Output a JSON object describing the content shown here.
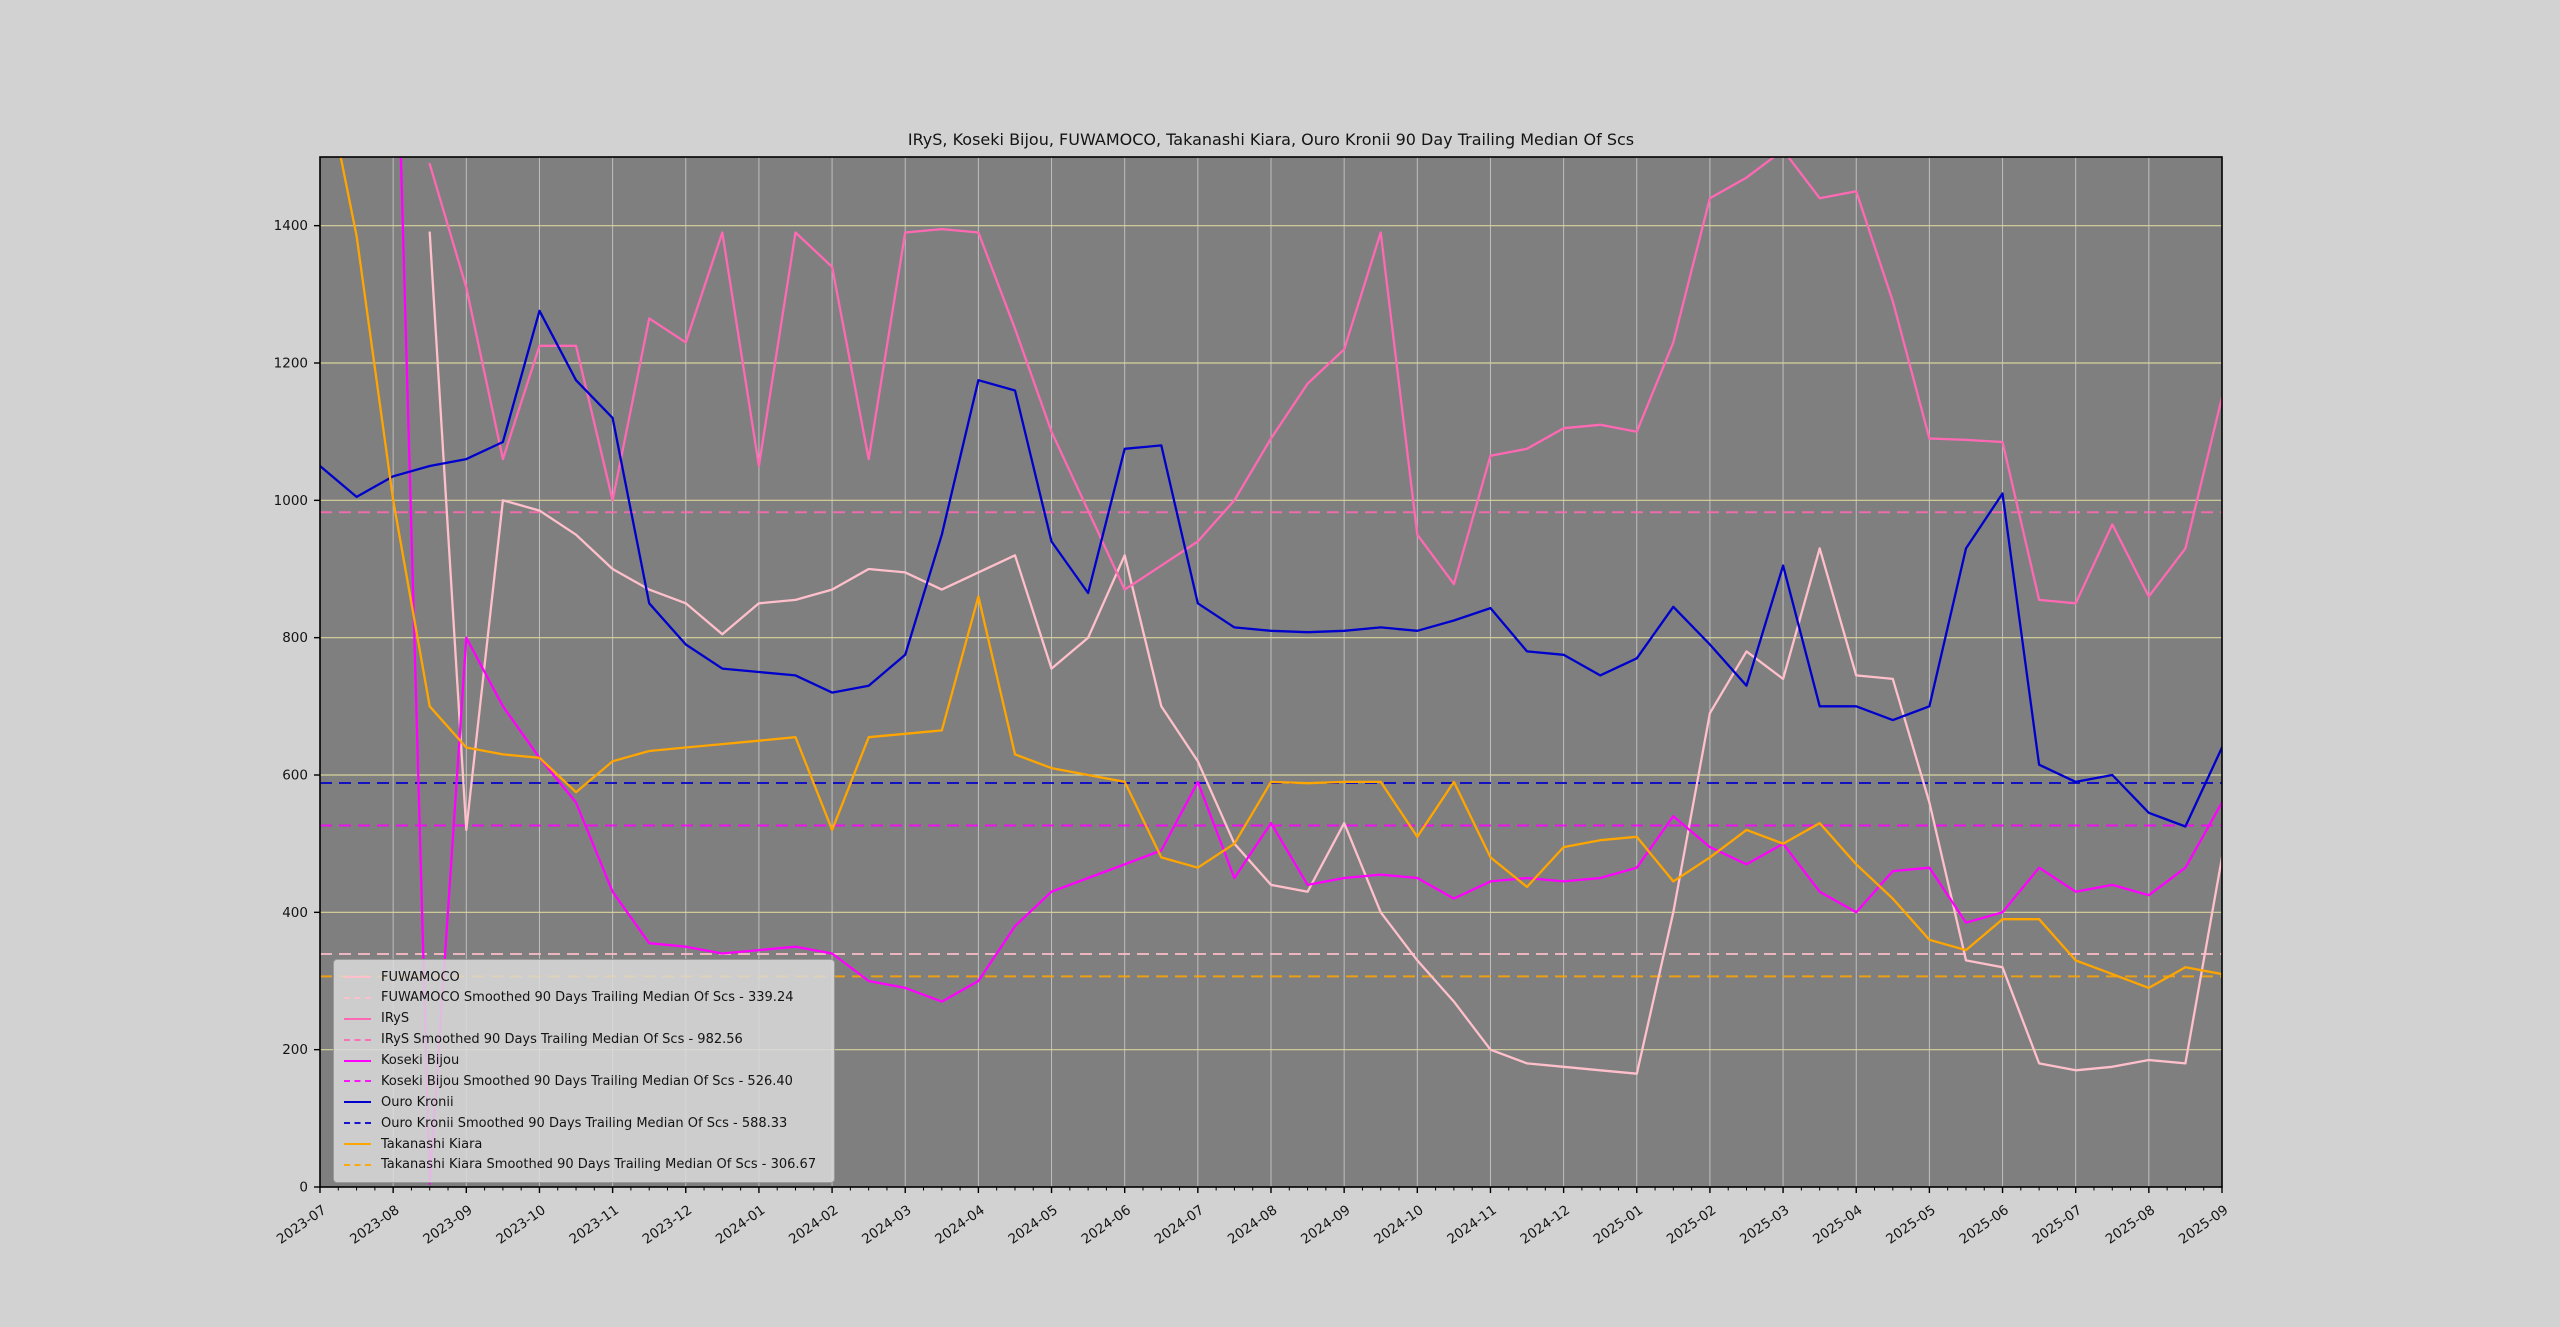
{
  "chart_data": {
    "type": "line",
    "title": "IRyS, Koseki Bijou, FUWAMOCO, Takanashi Kiara, Ouro Kronii 90 Day Trailing Median Of Scs",
    "xlabel": "",
    "ylabel": "",
    "ylim": [
      0,
      1500
    ],
    "y_ticks": [
      0,
      200,
      400,
      600,
      800,
      1000,
      1200,
      1400
    ],
    "x_tick_labels": [
      "2023-07",
      "2023-08",
      "2023-09",
      "2023-10",
      "2023-11",
      "2023-12",
      "2024-01",
      "2024-02",
      "2024-03",
      "2024-04",
      "2024-05",
      "2024-06",
      "2024-07",
      "2024-08",
      "2024-09",
      "2024-10",
      "2024-11",
      "2024-12",
      "2025-01",
      "2025-02",
      "2025-03",
      "2025-04",
      "2025-05",
      "2025-06",
      "2025-07",
      "2025-08",
      "2025-09"
    ],
    "x_step_months": 0.5,
    "grid": {
      "horizontal": true,
      "vertical": true
    },
    "legend_position": "lower left",
    "style": {
      "figure_background": "#d2d2d2",
      "plot_background": "#7f7f7f",
      "grid_h_color": "#d8d59c",
      "grid_v_color": "#bfbfbf",
      "spine_color": "#000000",
      "tick_label_color": "#141414"
    },
    "series": [
      {
        "name": "FUWAMOCO",
        "color": "#ffc0cb",
        "values": [
          null,
          null,
          null,
          1390,
          520,
          1000,
          985,
          950,
          900,
          870,
          850,
          805,
          850,
          855,
          870,
          900,
          895,
          870,
          895,
          920,
          755,
          800,
          920,
          700,
          620,
          500,
          440,
          430,
          530,
          400,
          330,
          270,
          200,
          180,
          175,
          170,
          165,
          400,
          690,
          780,
          740,
          930,
          745,
          740,
          560,
          330,
          320,
          180,
          170,
          175,
          185,
          180,
          480
        ]
      },
      {
        "name": "IRyS",
        "color": "#ff69b4",
        "values": [
          null,
          null,
          null,
          1490,
          1310,
          1060,
          1225,
          1225,
          1000,
          1265,
          1230,
          1390,
          1050,
          1390,
          1340,
          1060,
          1390,
          1395,
          1390,
          1250,
          1100,
          985,
          870,
          905,
          940,
          1000,
          1090,
          1170,
          1220,
          1390,
          950,
          878,
          1065,
          1075,
          1105,
          1110,
          1100,
          1230,
          1440,
          1470,
          1510,
          1440,
          1450,
          1290,
          1090,
          1088,
          1085,
          855,
          850,
          965,
          860,
          930,
          1150
        ]
      },
      {
        "name": "Koseki Bijou",
        "color": "#ff00ff",
        "values": [
          null,
          null,
          1900,
          5,
          800,
          700,
          625,
          560,
          430,
          355,
          350,
          340,
          345,
          350,
          340,
          300,
          290,
          270,
          300,
          380,
          430,
          450,
          470,
          490,
          590,
          450,
          530,
          440,
          450,
          455,
          450,
          420,
          445,
          450,
          445,
          450,
          465,
          540,
          495,
          470,
          500,
          430,
          400,
          460,
          465,
          385,
          400,
          465,
          430,
          440,
          425,
          465,
          560
        ]
      },
      {
        "name": "Ouro Kronii",
        "color": "#0000cd",
        "values": [
          1050,
          1005,
          1035,
          1050,
          1060,
          1085,
          1276,
          1175,
          1120,
          850,
          790,
          755,
          750,
          745,
          720,
          730,
          775,
          950,
          1175,
          1160,
          940,
          865,
          1075,
          1080,
          850,
          815,
          810,
          808,
          810,
          815,
          810,
          825,
          843,
          780,
          775,
          745,
          770,
          845,
          790,
          730,
          905,
          700,
          700,
          680,
          700,
          930,
          1010,
          615,
          590,
          600,
          545,
          525,
          640
        ]
      },
      {
        "name": "Takanashi Kiara",
        "color": "#ffa500",
        "values": [
          1650,
          1385,
          1000,
          700,
          640,
          630,
          625,
          575,
          620,
          635,
          640,
          645,
          650,
          655,
          520,
          655,
          660,
          665,
          860,
          630,
          610,
          600,
          590,
          480,
          465,
          500,
          590,
          588,
          590,
          590,
          510,
          590,
          480,
          437,
          495,
          505,
          510,
          445,
          480,
          520,
          500,
          530,
          470,
          420,
          360,
          345,
          390,
          390,
          330,
          310,
          290,
          320,
          310
        ]
      }
    ],
    "smoothed_lines": [
      {
        "name": "FUWAMOCO Smoothed 90 Days Trailing Median Of Scs",
        "value": 339.24,
        "color": "#ffc0cb"
      },
      {
        "name": "IRyS Smoothed 90 Days Trailing Median Of Scs",
        "value": 982.56,
        "color": "#ff69b4"
      },
      {
        "name": "Koseki Bijou Smoothed 90 Days Trailing Median Of Scs",
        "value": 526.4,
        "color": "#ff00ff"
      },
      {
        "name": "Ouro Kronii Smoothed 90 Days Trailing Median Of Scs",
        "value": 588.33,
        "color": "#0000cd"
      },
      {
        "name": "Takanashi Kiara Smoothed 90 Days Trailing Median Of Scs",
        "value": 306.67,
        "color": "#ffa500"
      }
    ]
  },
  "legend": {
    "items": [
      {
        "label": "FUWAMOCO",
        "color": "#ffc0cb",
        "dashed": false
      },
      {
        "label": "FUWAMOCO Smoothed 90 Days Trailing Median Of Scs - 339.24",
        "color": "#ffc0cb",
        "dashed": true
      },
      {
        "label": "IRyS",
        "color": "#ff69b4",
        "dashed": false
      },
      {
        "label": "IRyS Smoothed 90 Days Trailing Median Of Scs - 982.56",
        "color": "#ff69b4",
        "dashed": true
      },
      {
        "label": "Koseki Bijou",
        "color": "#ff00ff",
        "dashed": false
      },
      {
        "label": "Koseki Bijou Smoothed 90 Days Trailing Median Of Scs - 526.40",
        "color": "#ff00ff",
        "dashed": true
      },
      {
        "label": "Ouro Kronii",
        "color": "#0000cd",
        "dashed": false
      },
      {
        "label": "Ouro Kronii Smoothed 90 Days Trailing Median Of Scs - 588.33",
        "color": "#0000cd",
        "dashed": true
      },
      {
        "label": "Takanashi Kiara",
        "color": "#ffa500",
        "dashed": false
      },
      {
        "label": "Takanashi Kiara Smoothed 90 Days Trailing Median Of Scs - 306.67",
        "color": "#ffa500",
        "dashed": true
      }
    ]
  }
}
